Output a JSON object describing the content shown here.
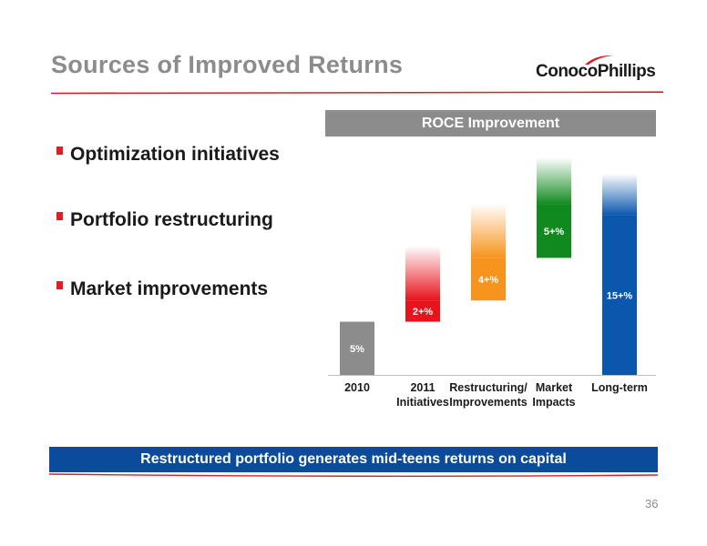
{
  "slide": {
    "title": "Sources of Improved Returns",
    "logo_text": "ConocoPhillips",
    "page_number": "36",
    "footer": "Restructured portfolio generates mid-teens returns on capital"
  },
  "bullets": [
    {
      "label": "Optimization initiatives"
    },
    {
      "label": "Portfolio restructuring"
    },
    {
      "label": "Market improvements"
    }
  ],
  "colors": {
    "accent_red": "#e31b23",
    "banner_blue": "#0a4b9b",
    "header_gray": "#8c8c8c"
  },
  "chart_data": {
    "type": "bar",
    "subtype": "waterfall",
    "title": "ROCE Improvement",
    "categories": [
      [
        "2010"
      ],
      [
        "2011",
        "Initiatives"
      ],
      [
        "Restructuring/",
        "Improvements"
      ],
      [
        "Market",
        "Impacts"
      ],
      [
        "Long-term"
      ]
    ],
    "labels": [
      "5%",
      "2+%",
      "4+%",
      "5+%",
      "15+%"
    ],
    "values": [
      5,
      2,
      4,
      5,
      15
    ],
    "kind": [
      "base",
      "increment",
      "increment",
      "increment",
      "total"
    ],
    "colors": [
      "#8c8c8c",
      "#e8131b",
      "#f7941d",
      "#108a1e",
      "#0a57ad"
    ],
    "ylim": [
      0,
      19.5
    ],
    "grid": false,
    "legend": "none"
  }
}
